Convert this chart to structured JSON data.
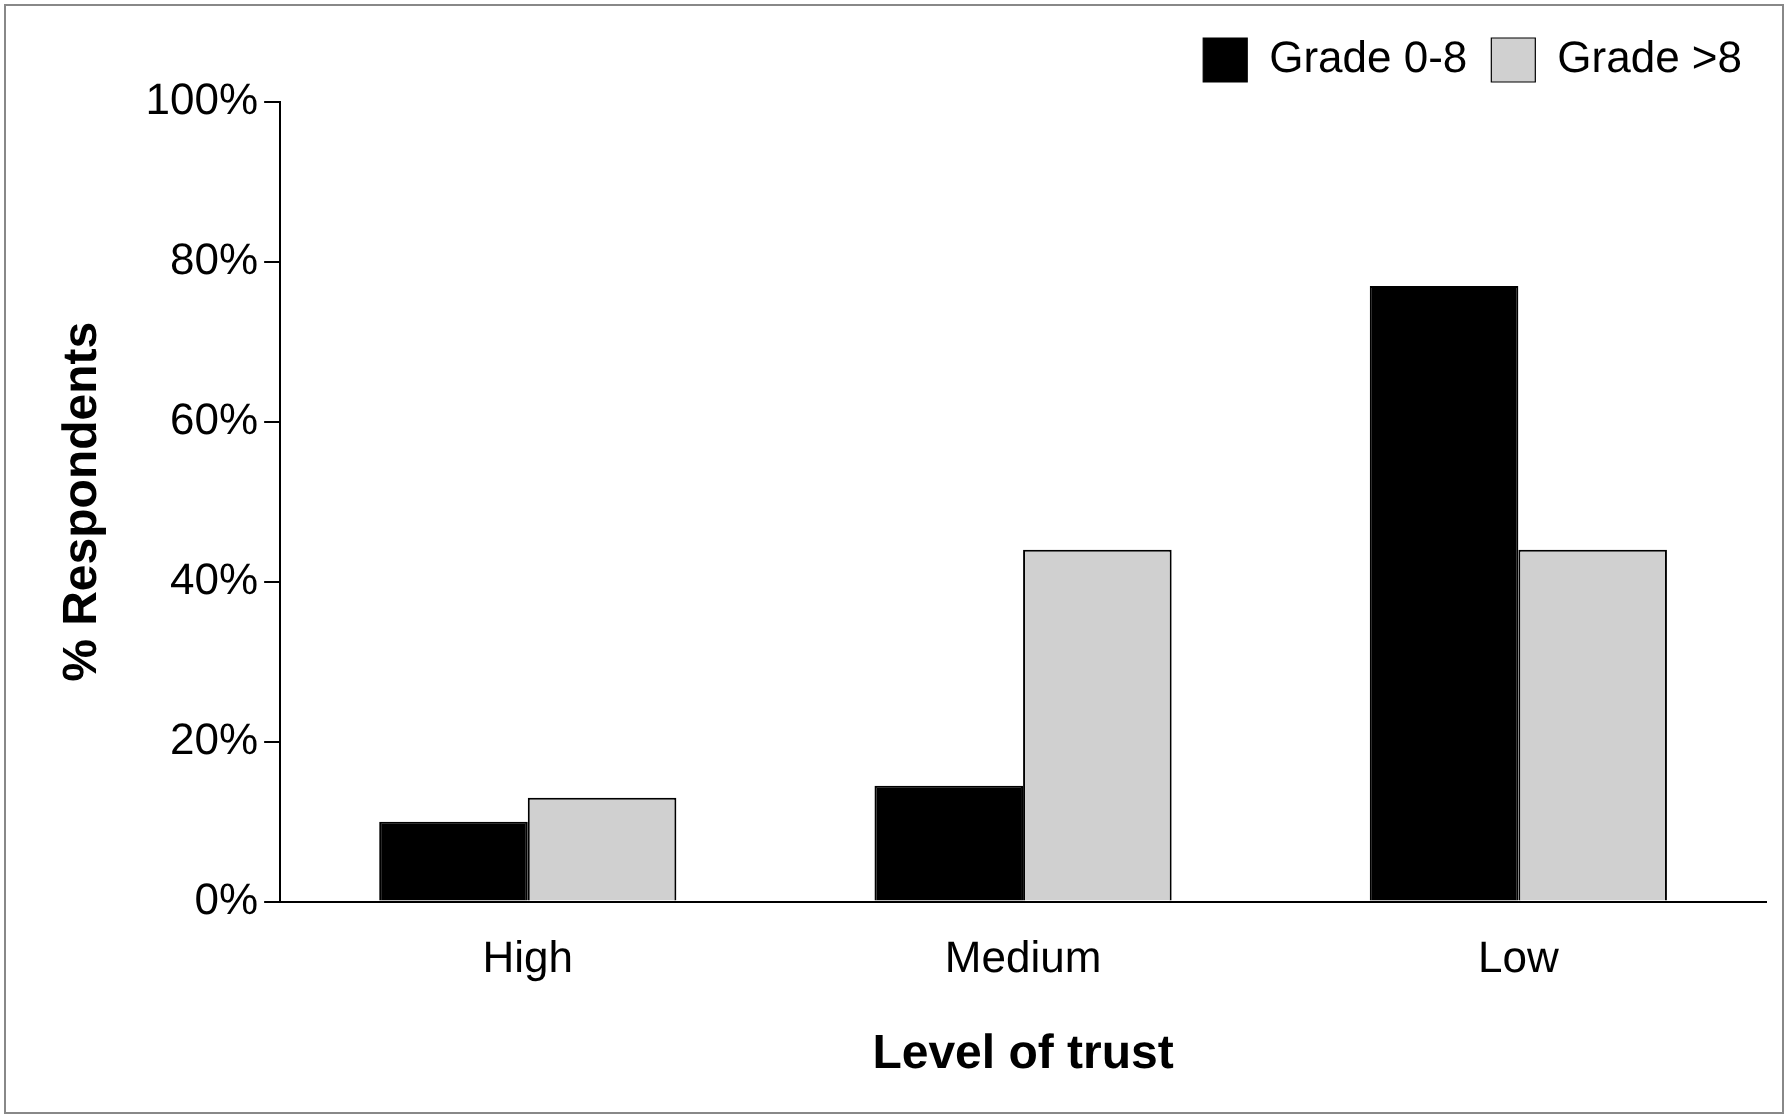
{
  "chart_data": {
    "type": "bar",
    "xlabel": "Level of trust",
    "ylabel": "% Respondents",
    "categories": [
      "High",
      "Medium",
      "Low"
    ],
    "series": [
      {
        "name": "Grade 0-8",
        "color": "#000000",
        "values": [
          10,
          14.5,
          77
        ]
      },
      {
        "name": "Grade >8",
        "color": "#d0d0d0",
        "values": [
          13,
          44,
          44
        ]
      }
    ],
    "ylim": [
      0,
      100
    ],
    "yticks": [
      {
        "value": 0,
        "label": "0%"
      },
      {
        "value": 20,
        "label": "20%"
      },
      {
        "value": 40,
        "label": "40%"
      },
      {
        "value": 60,
        "label": "60%"
      },
      {
        "value": 80,
        "label": "80%"
      },
      {
        "value": 100,
        "label": "100%"
      }
    ],
    "grid": false,
    "legend": "top right"
  }
}
